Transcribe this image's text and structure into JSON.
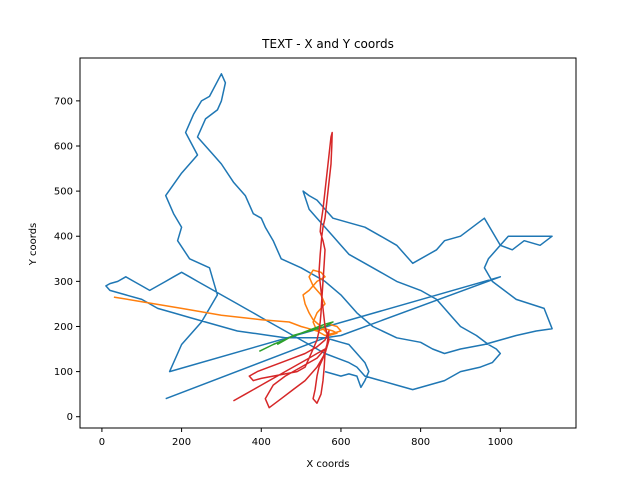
{
  "chart_data": {
    "type": "line",
    "title": "TEXT - X and Y coords",
    "xlabel": "X coords",
    "ylabel": "Y coords",
    "xlim": [
      -55,
      1190
    ],
    "ylim": [
      -25,
      795
    ],
    "xticks": [
      0,
      200,
      400,
      600,
      800,
      1000
    ],
    "yticks": [
      0,
      100,
      200,
      300,
      400,
      500,
      600,
      700
    ],
    "grid": false,
    "series": [
      {
        "color": "#1f77b4",
        "points": [
          [
            160,
            40
          ],
          [
            560,
            175
          ],
          [
            600,
            180
          ],
          [
            1000,
            310
          ],
          [
            170,
            100
          ],
          [
            200,
            160
          ],
          [
            250,
            210
          ],
          [
            290,
            270
          ],
          [
            270,
            330
          ],
          [
            220,
            350
          ],
          [
            190,
            390
          ],
          [
            200,
            420
          ],
          [
            180,
            450
          ],
          [
            160,
            490
          ],
          [
            200,
            540
          ],
          [
            240,
            580
          ],
          [
            210,
            630
          ],
          [
            230,
            670
          ],
          [
            250,
            700
          ],
          [
            270,
            710
          ],
          [
            300,
            760
          ],
          [
            310,
            740
          ],
          [
            300,
            700
          ],
          [
            290,
            680
          ],
          [
            260,
            660
          ],
          [
            250,
            640
          ],
          [
            240,
            620
          ],
          [
            260,
            600
          ],
          [
            280,
            580
          ],
          [
            300,
            560
          ],
          [
            330,
            520
          ],
          [
            360,
            490
          ],
          [
            380,
            450
          ],
          [
            400,
            440
          ],
          [
            410,
            420
          ],
          [
            430,
            390
          ],
          [
            440,
            370
          ],
          [
            450,
            350
          ],
          [
            500,
            330
          ],
          [
            560,
            300
          ],
          [
            600,
            270
          ],
          [
            640,
            230
          ],
          [
            680,
            200
          ],
          [
            740,
            175
          ],
          [
            800,
            165
          ],
          [
            830,
            150
          ],
          [
            860,
            140
          ],
          [
            900,
            150
          ],
          [
            960,
            160
          ],
          [
            1000,
            170
          ],
          [
            1040,
            180
          ],
          [
            1090,
            190
          ],
          [
            1130,
            195
          ],
          [
            1110,
            240
          ],
          [
            1040,
            260
          ],
          [
            980,
            300
          ],
          [
            960,
            330
          ],
          [
            970,
            350
          ],
          [
            1000,
            380
          ],
          [
            1020,
            400
          ],
          [
            1130,
            400
          ],
          [
            1100,
            380
          ],
          [
            1060,
            390
          ],
          [
            1030,
            370
          ],
          [
            1000,
            380
          ],
          [
            960,
            440
          ],
          [
            900,
            400
          ],
          [
            860,
            390
          ],
          [
            840,
            370
          ],
          [
            780,
            340
          ],
          [
            760,
            360
          ],
          [
            740,
            380
          ],
          [
            700,
            400
          ],
          [
            660,
            420
          ],
          [
            620,
            430
          ],
          [
            580,
            440
          ],
          [
            560,
            460
          ],
          [
            540,
            480
          ],
          [
            520,
            490
          ],
          [
            505,
            500
          ],
          [
            520,
            460
          ],
          [
            540,
            440
          ],
          [
            560,
            420
          ],
          [
            580,
            400
          ],
          [
            600,
            380
          ],
          [
            620,
            360
          ],
          [
            660,
            340
          ],
          [
            700,
            320
          ],
          [
            740,
            300
          ],
          [
            800,
            280
          ],
          [
            840,
            260
          ],
          [
            860,
            240
          ],
          [
            880,
            220
          ],
          [
            900,
            200
          ],
          [
            940,
            180
          ],
          [
            970,
            160
          ],
          [
            990,
            150
          ],
          [
            1000,
            140
          ],
          [
            980,
            120
          ],
          [
            950,
            110
          ],
          [
            900,
            100
          ],
          [
            860,
            80
          ],
          [
            820,
            70
          ],
          [
            780,
            60
          ],
          [
            740,
            70
          ],
          [
            700,
            80
          ],
          [
            660,
            90
          ],
          [
            640,
            110
          ],
          [
            620,
            120
          ],
          [
            590,
            130
          ],
          [
            560,
            140
          ],
          [
            540,
            150
          ],
          [
            520,
            160
          ],
          [
            500,
            170
          ],
          [
            480,
            180
          ],
          [
            460,
            190
          ],
          [
            440,
            200
          ],
          [
            420,
            210
          ],
          [
            400,
            220
          ],
          [
            380,
            230
          ],
          [
            360,
            240
          ],
          [
            340,
            250
          ],
          [
            320,
            260
          ],
          [
            300,
            270
          ],
          [
            280,
            280
          ],
          [
            260,
            290
          ],
          [
            240,
            300
          ],
          [
            220,
            310
          ],
          [
            200,
            320
          ],
          [
            180,
            310
          ],
          [
            160,
            300
          ],
          [
            140,
            290
          ],
          [
            120,
            280
          ],
          [
            100,
            290
          ],
          [
            80,
            300
          ],
          [
            60,
            310
          ],
          [
            40,
            300
          ],
          [
            20,
            295
          ],
          [
            10,
            290
          ],
          [
            20,
            280
          ],
          [
            60,
            270
          ],
          [
            100,
            260
          ],
          [
            140,
            240
          ],
          [
            180,
            230
          ],
          [
            220,
            220
          ],
          [
            260,
            210
          ],
          [
            300,
            200
          ],
          [
            340,
            190
          ],
          [
            380,
            185
          ],
          [
            420,
            180
          ],
          [
            460,
            175
          ],
          [
            500,
            175
          ],
          [
            540,
            175
          ],
          [
            560,
            175
          ],
          [
            580,
            170
          ],
          [
            600,
            165
          ],
          [
            620,
            160
          ],
          [
            640,
            140
          ],
          [
            660,
            120
          ],
          [
            670,
            100
          ],
          [
            660,
            80
          ],
          [
            650,
            65
          ],
          [
            640,
            90
          ],
          [
            620,
            95
          ],
          [
            600,
            90
          ],
          [
            580,
            95
          ],
          [
            560,
            100
          ]
        ]
      },
      {
        "color": "#ff7f0e",
        "points": [
          [
            30,
            265
          ],
          [
            100,
            255
          ],
          [
            200,
            240
          ],
          [
            300,
            225
          ],
          [
            400,
            215
          ],
          [
            470,
            210
          ],
          [
            500,
            200
          ],
          [
            520,
            195
          ],
          [
            540,
            190
          ],
          [
            560,
            195
          ],
          [
            580,
            190
          ],
          [
            590,
            185
          ],
          [
            570,
            180
          ],
          [
            550,
            200
          ],
          [
            530,
            215
          ],
          [
            520,
            230
          ],
          [
            510,
            250
          ],
          [
            505,
            270
          ],
          [
            520,
            280
          ],
          [
            540,
            300
          ],
          [
            560,
            310
          ],
          [
            550,
            320
          ],
          [
            530,
            325
          ],
          [
            520,
            310
          ],
          [
            530,
            290
          ],
          [
            550,
            270
          ],
          [
            560,
            250
          ],
          [
            540,
            230
          ],
          [
            530,
            210
          ],
          [
            540,
            190
          ],
          [
            560,
            180
          ],
          [
            580,
            185
          ],
          [
            600,
            190
          ],
          [
            590,
            200
          ],
          [
            570,
            205
          ]
        ]
      },
      {
        "color": "#2ca02c",
        "points": [
          [
            395,
            145
          ],
          [
            430,
            160
          ],
          [
            470,
            175
          ],
          [
            500,
            185
          ],
          [
            530,
            195
          ],
          [
            560,
            205
          ],
          [
            580,
            210
          ],
          [
            560,
            200
          ],
          [
            540,
            195
          ],
          [
            520,
            190
          ],
          [
            500,
            185
          ],
          [
            480,
            180
          ],
          [
            460,
            170
          ],
          [
            440,
            160
          ]
        ]
      },
      {
        "color": "#d62728",
        "points": [
          [
            330,
            35
          ],
          [
            360,
            50
          ],
          [
            400,
            70
          ],
          [
            440,
            90
          ],
          [
            480,
            110
          ],
          [
            520,
            130
          ],
          [
            540,
            140
          ],
          [
            560,
            150
          ],
          [
            540,
            130
          ],
          [
            500,
            110
          ],
          [
            460,
            90
          ],
          [
            430,
            70
          ],
          [
            410,
            40
          ],
          [
            420,
            20
          ],
          [
            450,
            40
          ],
          [
            480,
            60
          ],
          [
            510,
            80
          ],
          [
            540,
            110
          ],
          [
            560,
            140
          ],
          [
            570,
            170
          ],
          [
            560,
            200
          ],
          [
            555,
            240
          ],
          [
            550,
            280
          ],
          [
            545,
            320
          ],
          [
            548,
            360
          ],
          [
            552,
            400
          ],
          [
            555,
            420
          ],
          [
            560,
            440
          ],
          [
            565,
            480
          ],
          [
            570,
            520
          ],
          [
            575,
            560
          ],
          [
            577,
            600
          ],
          [
            578,
            630
          ],
          [
            575,
            620
          ],
          [
            570,
            580
          ],
          [
            565,
            540
          ],
          [
            560,
            500
          ],
          [
            555,
            460
          ],
          [
            550,
            430
          ],
          [
            548,
            410
          ],
          [
            555,
            390
          ],
          [
            560,
            370
          ],
          [
            558,
            340
          ],
          [
            555,
            300
          ],
          [
            552,
            260
          ],
          [
            550,
            230
          ],
          [
            548,
            210
          ],
          [
            545,
            190
          ],
          [
            540,
            170
          ],
          [
            530,
            150
          ],
          [
            520,
            130
          ],
          [
            510,
            110
          ],
          [
            490,
            100
          ],
          [
            460,
            95
          ],
          [
            430,
            90
          ],
          [
            400,
            85
          ],
          [
            380,
            80
          ],
          [
            370,
            90
          ],
          [
            390,
            100
          ],
          [
            420,
            110
          ],
          [
            450,
            120
          ],
          [
            480,
            130
          ],
          [
            510,
            140
          ],
          [
            540,
            155
          ],
          [
            560,
            170
          ],
          [
            570,
            190
          ],
          [
            565,
            160
          ],
          [
            555,
            130
          ],
          [
            545,
            110
          ],
          [
            540,
            90
          ],
          [
            535,
            60
          ],
          [
            530,
            40
          ],
          [
            540,
            30
          ],
          [
            550,
            50
          ],
          [
            555,
            80
          ],
          [
            558,
            110
          ],
          [
            560,
            140
          ]
        ]
      }
    ]
  }
}
